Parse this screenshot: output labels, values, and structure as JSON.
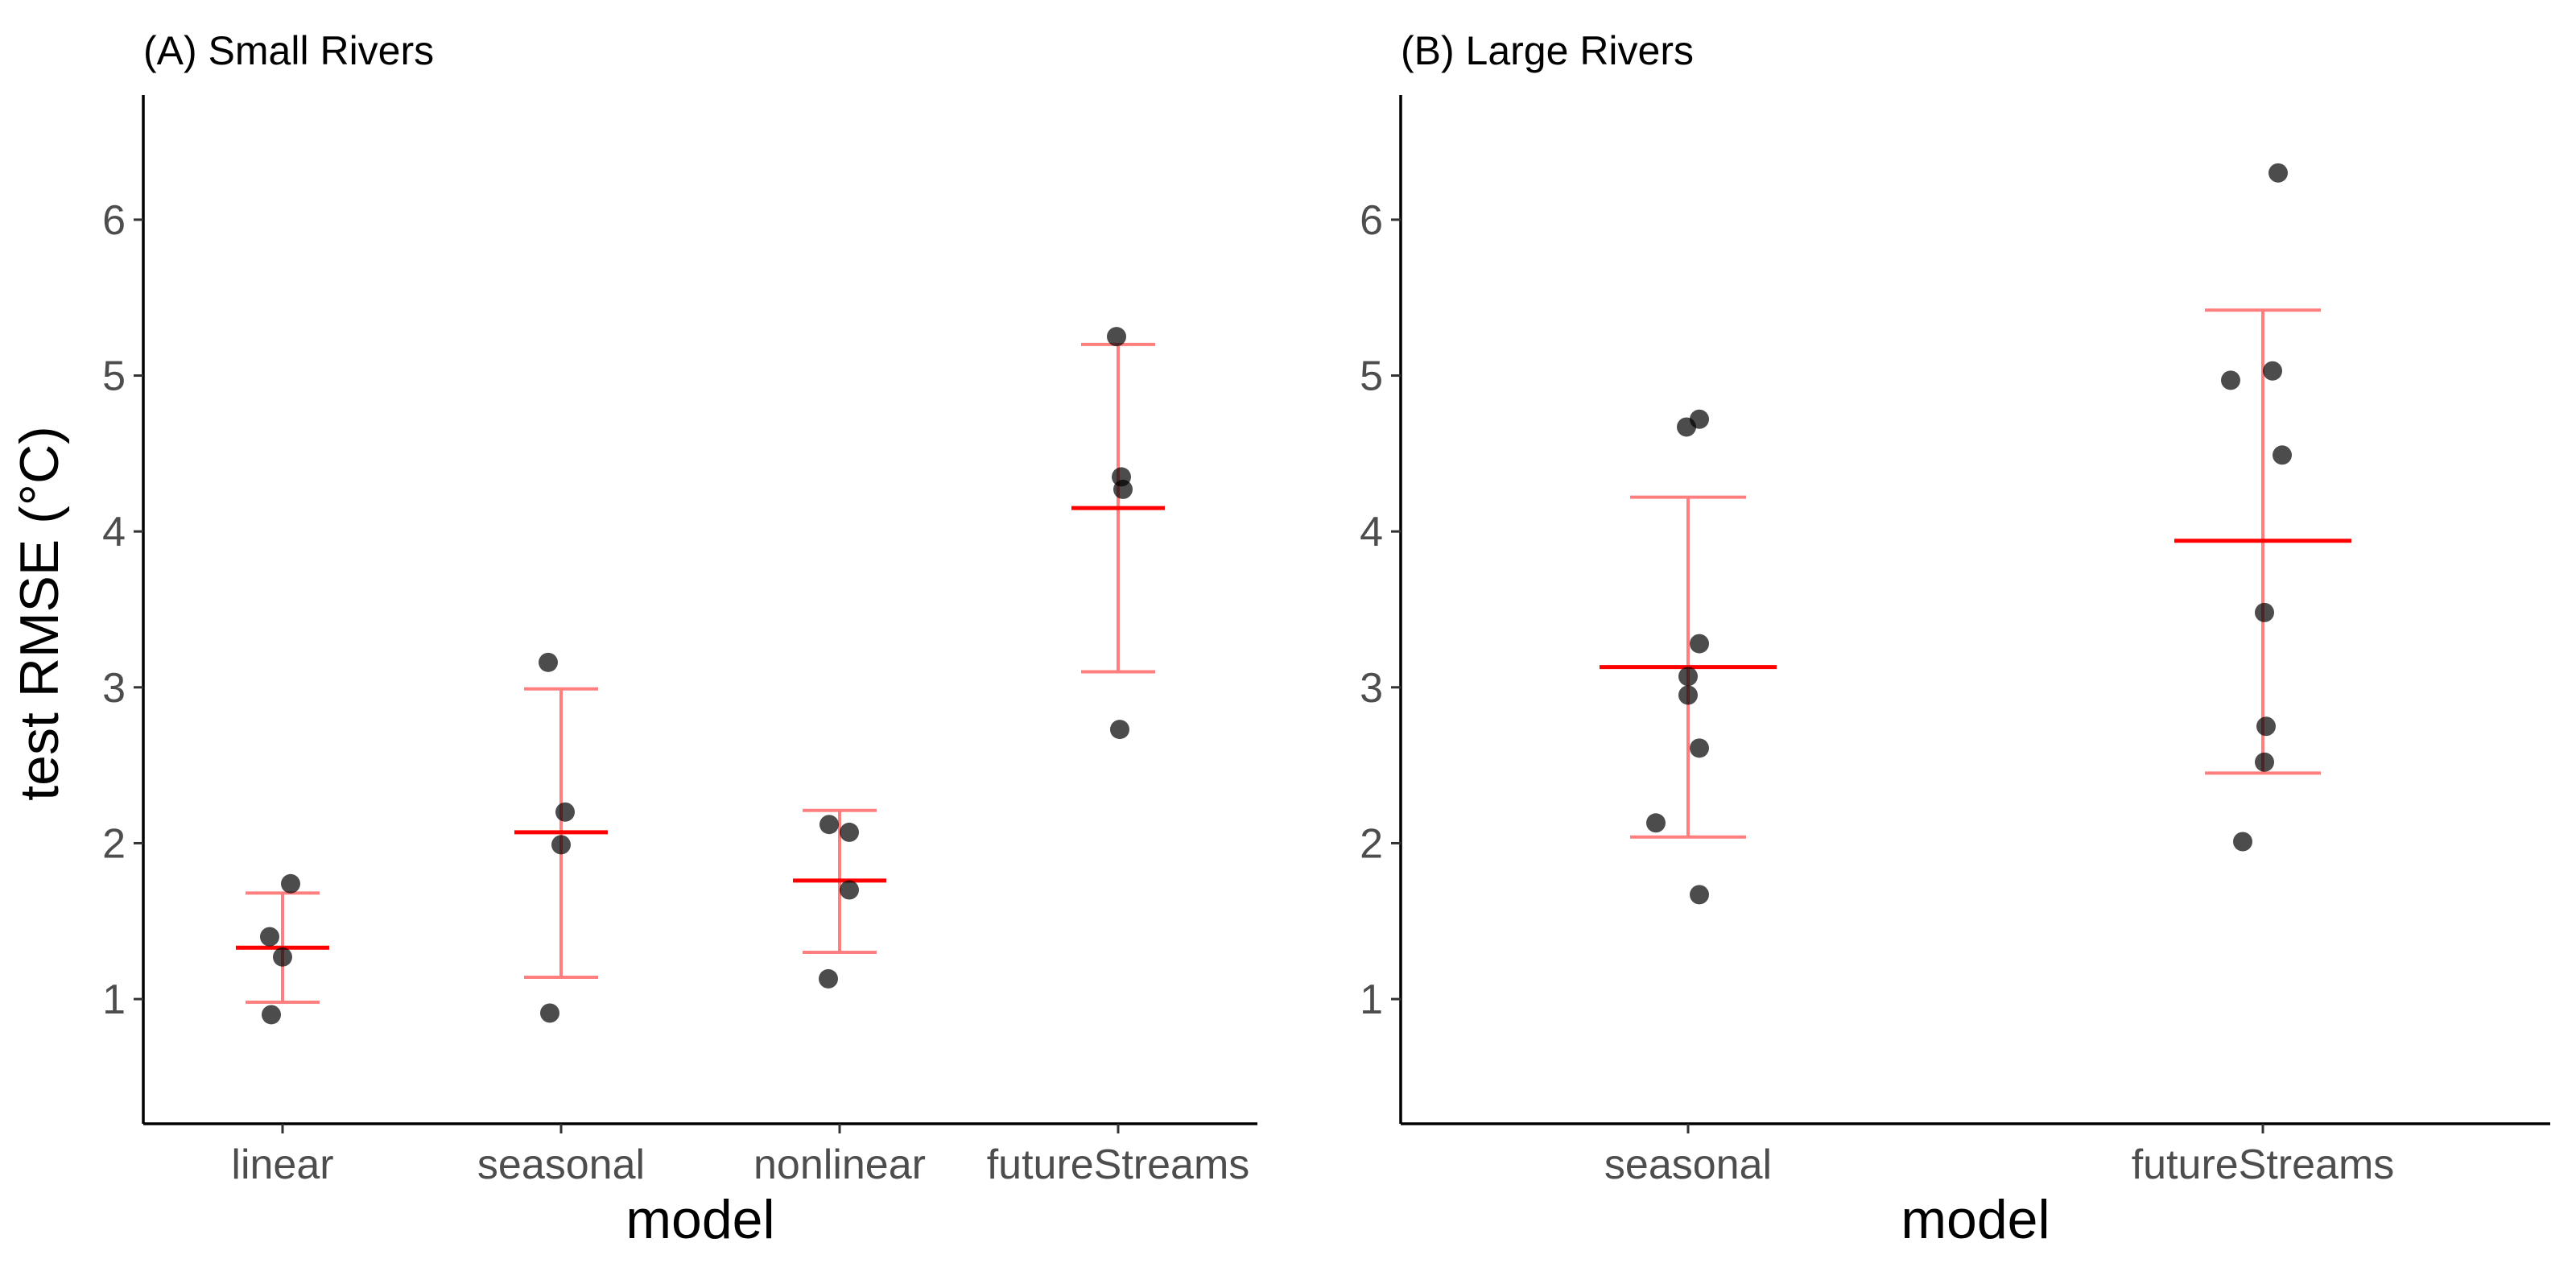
{
  "colors": {
    "point": "#000000",
    "mean_line": "#ff0000",
    "error_bar": "#ff0000",
    "tick_text": "#4d4d4d"
  },
  "axes": {
    "ylabel": "test RMSE (°C)",
    "yticks": [
      1,
      2,
      3,
      4,
      5,
      6
    ]
  },
  "chart_data": [
    {
      "type": "scatter",
      "title": "(A) Small Rivers",
      "xlabel": "model",
      "ylabel": "test RMSE (°C)",
      "ylim": [
        0.2,
        6.8
      ],
      "grid": false,
      "categories": [
        "linear",
        "seasonal",
        "nonlinear",
        "futureStreams"
      ],
      "points": [
        {
          "category": "linear",
          "values": [
            0.9,
            1.27,
            1.4,
            1.74
          ]
        },
        {
          "category": "seasonal",
          "values": [
            0.91,
            1.99,
            2.2,
            3.16
          ]
        },
        {
          "category": "nonlinear",
          "values": [
            1.13,
            1.7,
            2.07,
            2.12
          ]
        },
        {
          "category": "futureStreams",
          "values": [
            2.73,
            4.27,
            4.35,
            5.25
          ]
        }
      ],
      "summary": [
        {
          "category": "linear",
          "mean": 1.33,
          "lower": 0.98,
          "upper": 1.68
        },
        {
          "category": "seasonal",
          "mean": 2.07,
          "lower": 1.14,
          "upper": 2.99
        },
        {
          "category": "nonlinear",
          "mean": 1.76,
          "lower": 1.3,
          "upper": 2.21
        },
        {
          "category": "futureStreams",
          "mean": 4.15,
          "lower": 3.1,
          "upper": 5.2
        }
      ]
    },
    {
      "type": "scatter",
      "title": "(B) Large Rivers",
      "xlabel": "model",
      "ylabel": "",
      "ylim": [
        0.2,
        6.8
      ],
      "grid": false,
      "categories": [
        "seasonal",
        "futureStreams"
      ],
      "points": [
        {
          "category": "seasonal",
          "values": [
            1.67,
            2.13,
            2.61,
            2.95,
            3.07,
            3.28,
            4.67,
            4.72
          ]
        },
        {
          "category": "futureStreams",
          "values": [
            2.01,
            2.52,
            2.75,
            3.48,
            4.49,
            4.97,
            5.03,
            6.3
          ]
        }
      ],
      "summary": [
        {
          "category": "seasonal",
          "mean": 3.13,
          "lower": 2.04,
          "upper": 4.22
        },
        {
          "category": "futureStreams",
          "mean": 3.94,
          "lower": 2.45,
          "upper": 5.42
        }
      ]
    }
  ]
}
